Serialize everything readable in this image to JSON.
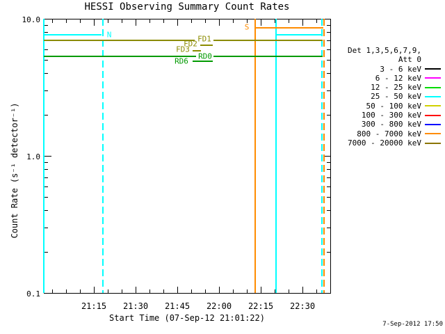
{
  "chart_data": {
    "type": "line",
    "title": "HESSI Observing Summary Count Rates",
    "x_axis": {
      "label": "Start Time (07-Sep-12 21:01:22)",
      "ticks": [
        {
          "t": 15,
          "label": "21:15"
        },
        {
          "t": 30,
          "label": "21:30"
        },
        {
          "t": 45,
          "label": "21:45"
        },
        {
          "t": 60,
          "label": "22:00"
        },
        {
          "t": 75,
          "label": "22:15"
        },
        {
          "t": 90,
          "label": "22:30"
        }
      ],
      "minor_step_minutes": 5,
      "range_minutes_after_2100": [
        -3,
        100
      ]
    },
    "y_axis": {
      "label": "Count Rate (s⁻¹ detector⁻¹)",
      "scale": "log",
      "range": [
        0.1,
        10.0
      ],
      "ticks": [
        {
          "v": 10.0,
          "label": "10.0"
        },
        {
          "v": 1.0,
          "label": "1.0"
        },
        {
          "v": 0.1,
          "label": "0.1"
        }
      ]
    },
    "colors": {
      "cyan": "#00ffff",
      "orange": "#ff8c00",
      "olive": "#8b8b00",
      "green": "#009a00"
    },
    "flags": [
      {
        "label": "S",
        "color": "orange",
        "value": 8.6,
        "label_t": 70,
        "label_v": 8.7,
        "segments": [
          [
            73,
            97.5
          ]
        ]
      },
      {
        "label": "N",
        "color": "cyan",
        "value": 7.6,
        "label_t": 20.5,
        "label_v": 7.6,
        "segments": [
          [
            -3,
            17.75
          ],
          [
            80.5,
            97.25
          ]
        ]
      },
      {
        "label": "FD1",
        "color": "olive",
        "value": 7.0,
        "label_t": 54.75,
        "label_v": 7.15,
        "segments": [
          [
            -3,
            51.25
          ],
          [
            58,
            97.25
          ]
        ]
      },
      {
        "label": "FD2",
        "color": "olive",
        "value": 6.45,
        "label_t": 49.75,
        "label_v": 6.55,
        "segments": [
          [
            53.25,
            57.75
          ]
        ]
      },
      {
        "label": "FD3",
        "color": "olive",
        "value": 5.85,
        "label_t": 47,
        "label_v": 5.95,
        "segments": [
          [
            50.5,
            53.5
          ]
        ]
      },
      {
        "label": "RD0",
        "color": "green",
        "value": 5.3,
        "label_t": 55,
        "label_v": 5.35,
        "segments": [
          [
            -3,
            51.75
          ],
          [
            58,
            97.25
          ]
        ]
      },
      {
        "label": "RD6",
        "color": "green",
        "value": 4.9,
        "label_t": 46.5,
        "label_v": 4.9,
        "segments": [
          [
            50.5,
            57.75
          ]
        ]
      }
    ],
    "events": [
      {
        "t": -3,
        "style": "solid",
        "color": "cyan"
      },
      {
        "t": 18.25,
        "style": "dashed",
        "color": "cyan"
      },
      {
        "t": 73,
        "style": "solid",
        "color": "orange"
      },
      {
        "t": 80.5,
        "style": "solid",
        "color": "cyan"
      },
      {
        "t": 97,
        "style": "dashed",
        "color": "cyan"
      },
      {
        "t": 97.75,
        "style": "dashed",
        "color": "orange"
      }
    ],
    "legend": {
      "header": [
        "Det 1,3,5,6,7,9,",
        "Att 0"
      ],
      "items": [
        {
          "label": "3 - 6 keV",
          "color": "#000000"
        },
        {
          "label": "6 - 12 keV",
          "color": "#ff00ff"
        },
        {
          "label": "12 - 25 keV",
          "color": "#00dc00"
        },
        {
          "label": "25 - 50 keV",
          "color": "#00ffff"
        },
        {
          "label": "50 - 100 keV",
          "color": "#d0d000"
        },
        {
          "label": "100 - 300 keV",
          "color": "#ff0000"
        },
        {
          "label": "300 - 800 keV",
          "color": "#0000ff"
        },
        {
          "label": "800 - 7000 keV",
          "color": "#ff8c00"
        },
        {
          "label": "7000 - 20000 keV",
          "color": "#8b7500"
        }
      ]
    }
  },
  "footer": {
    "timestamp": "7-Sep-2012 17:50"
  }
}
